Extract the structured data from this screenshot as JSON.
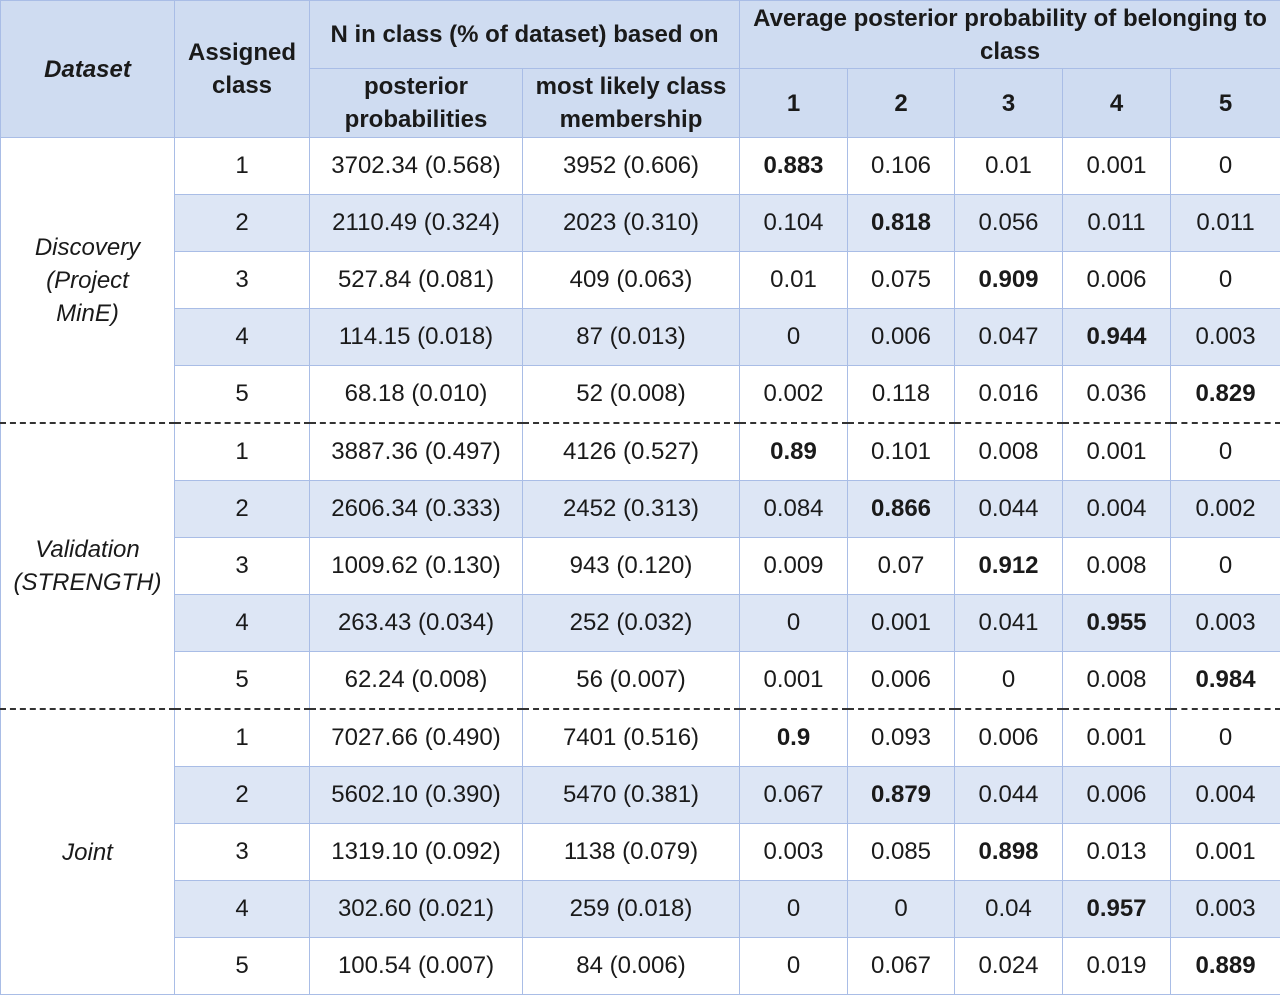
{
  "headers": {
    "dataset": "Dataset",
    "assigned_class": "Assigned class",
    "n_in_class": "N in class (% of dataset) based on",
    "posterior_probabilities": "posterior probabilities",
    "most_likely": "most likely class membership",
    "avg_posterior": "Average posterior probability of belonging to class",
    "class_cols": [
      "1",
      "2",
      "3",
      "4",
      "5"
    ]
  },
  "groups": [
    {
      "label_lines": [
        "Discovery",
        "(Project",
        "MinE)"
      ],
      "rows": [
        {
          "cls": "1",
          "post": "3702.34 (0.568)",
          "ml": "3952 (0.606)",
          "p": [
            "0.883",
            "0.106",
            "0.01",
            "0.001",
            "0"
          ],
          "bold": 0
        },
        {
          "cls": "2",
          "post": "2110.49 (0.324)",
          "ml": "2023 (0.310)",
          "p": [
            "0.104",
            "0.818",
            "0.056",
            "0.011",
            "0.011"
          ],
          "bold": 1
        },
        {
          "cls": "3",
          "post": "527.84 (0.081)",
          "ml": "409 (0.063)",
          "p": [
            "0.01",
            "0.075",
            "0.909",
            "0.006",
            "0"
          ],
          "bold": 2
        },
        {
          "cls": "4",
          "post": "114.15 (0.018)",
          "ml": "87 (0.013)",
          "p": [
            "0",
            "0.006",
            "0.047",
            "0.944",
            "0.003"
          ],
          "bold": 3
        },
        {
          "cls": "5",
          "post": "68.18 (0.010)",
          "ml": "52 (0.008)",
          "p": [
            "0.002",
            "0.118",
            "0.016",
            "0.036",
            "0.829"
          ],
          "bold": 4
        }
      ]
    },
    {
      "label_lines": [
        "Validation",
        "(STRENGTH)"
      ],
      "rows": [
        {
          "cls": "1",
          "post": "3887.36 (0.497)",
          "ml": "4126 (0.527)",
          "p": [
            "0.89",
            "0.101",
            "0.008",
            "0.001",
            "0"
          ],
          "bold": 0
        },
        {
          "cls": "2",
          "post": "2606.34 (0.333)",
          "ml": "2452 (0.313)",
          "p": [
            "0.084",
            "0.866",
            "0.044",
            "0.004",
            "0.002"
          ],
          "bold": 1
        },
        {
          "cls": "3",
          "post": "1009.62 (0.130)",
          "ml": "943 (0.120)",
          "p": [
            "0.009",
            "0.07",
            "0.912",
            "0.008",
            "0"
          ],
          "bold": 2
        },
        {
          "cls": "4",
          "post": "263.43 (0.034)",
          "ml": "252 (0.032)",
          "p": [
            "0",
            "0.001",
            "0.041",
            "0.955",
            "0.003"
          ],
          "bold": 3
        },
        {
          "cls": "5",
          "post": "62.24 (0.008)",
          "ml": "56 (0.007)",
          "p": [
            "0.001",
            "0.006",
            "0",
            "0.008",
            "0.984"
          ],
          "bold": 4
        }
      ]
    },
    {
      "label_lines": [
        "Joint"
      ],
      "rows": [
        {
          "cls": "1",
          "post": "7027.66 (0.490)",
          "ml": "7401 (0.516)",
          "p": [
            "0.9",
            "0.093",
            "0.006",
            "0.001",
            "0"
          ],
          "bold": 0
        },
        {
          "cls": "2",
          "post": "5602.10 (0.390)",
          "ml": "5470 (0.381)",
          "p": [
            "0.067",
            "0.879",
            "0.044",
            "0.006",
            "0.004"
          ],
          "bold": 1
        },
        {
          "cls": "3",
          "post": "1319.10 (0.092)",
          "ml": "1138 (0.079)",
          "p": [
            "0.003",
            "0.085",
            "0.898",
            "0.013",
            "0.001"
          ],
          "bold": 2
        },
        {
          "cls": "4",
          "post": "302.60 (0.021)",
          "ml": "259 (0.018)",
          "p": [
            "0",
            "0",
            "0.04",
            "0.957",
            "0.003"
          ],
          "bold": 3
        },
        {
          "cls": "5",
          "post": "100.54 (0.007)",
          "ml": "84 (0.006)",
          "p": [
            "0",
            "0.067",
            "0.024",
            "0.019",
            "0.889"
          ],
          "bold": 4
        }
      ]
    }
  ]
}
